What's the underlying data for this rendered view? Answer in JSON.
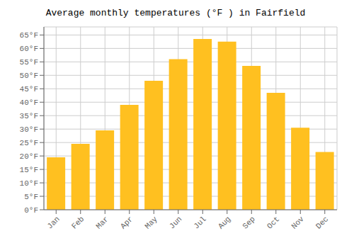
{
  "chart_data": {
    "type": "bar",
    "title": "Average monthly temperatures (°F ) in Fairfield",
    "categories": [
      "Jan",
      "Feb",
      "Mar",
      "Apr",
      "May",
      "Jun",
      "Jul",
      "Aug",
      "Sep",
      "Oct",
      "Nov",
      "Dec"
    ],
    "values": [
      19.5,
      24.5,
      29.5,
      39.0,
      48.0,
      56.0,
      63.5,
      62.5,
      53.5,
      43.5,
      30.5,
      21.5
    ],
    "color": "#FFC020",
    "ylim": [
      0,
      68
    ],
    "yticks": [
      {
        "value": 0,
        "label": "0°F"
      },
      {
        "value": 5,
        "label": "5°F"
      },
      {
        "value": 10,
        "label": "10°F"
      },
      {
        "value": 15,
        "label": "15°F"
      },
      {
        "value": 20,
        "label": "20°F"
      },
      {
        "value": 25,
        "label": "25°F"
      },
      {
        "value": 30,
        "label": "30°F"
      },
      {
        "value": 35,
        "label": "35°F"
      },
      {
        "value": 40,
        "label": "40°F"
      },
      {
        "value": 45,
        "label": "45°F"
      },
      {
        "value": 50,
        "label": "50°F"
      },
      {
        "value": 55,
        "label": "55°F"
      },
      {
        "value": 60,
        "label": "60°F"
      },
      {
        "value": 65,
        "label": "65°F"
      }
    ],
    "grid": true
  }
}
